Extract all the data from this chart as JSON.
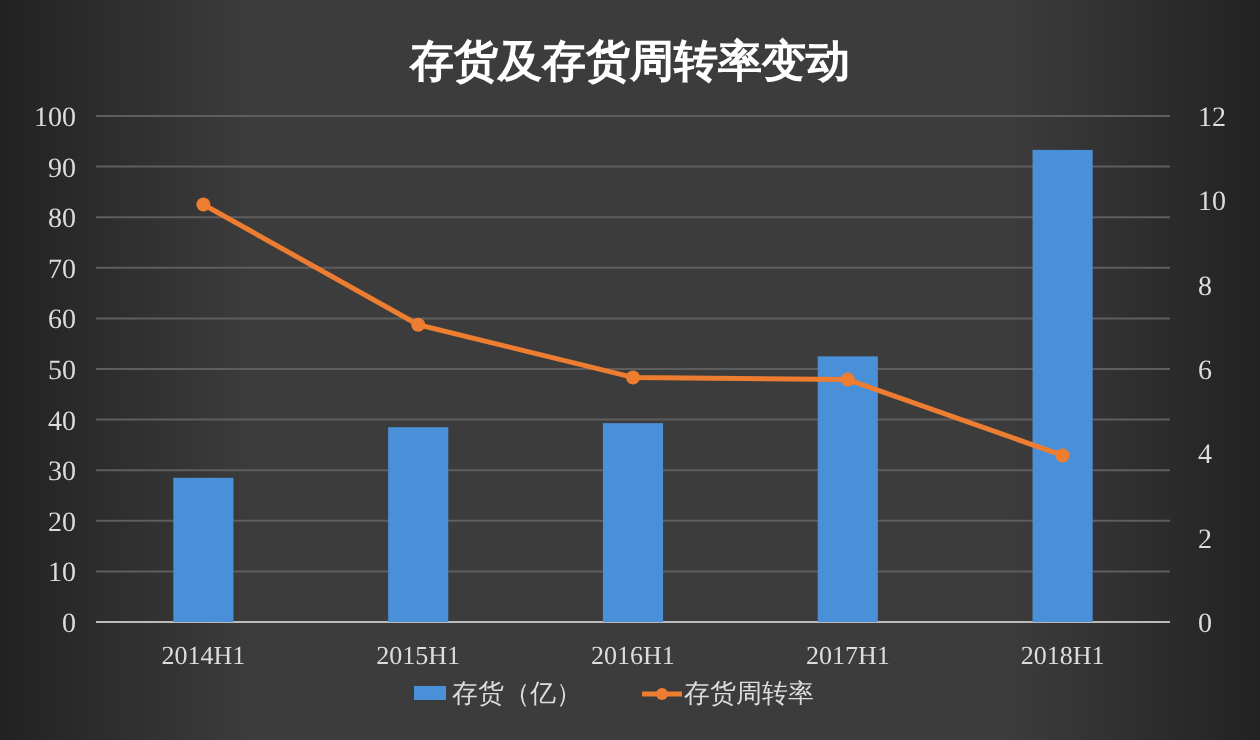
{
  "chart_data": {
    "type": "bar",
    "title": "存货及存货周转率变动",
    "categories": [
      "2014H1",
      "2015H1",
      "2016H1",
      "2017H1",
      "2018H1"
    ],
    "series": [
      {
        "name": "存货（亿）",
        "color": "#4a90d9",
        "values": [
          28.5,
          38.5,
          39.3,
          52.5,
          93.3
        ]
      },
      {
        "name": "存货周转率",
        "type": "line",
        "axis": "y2",
        "color": "#ed7d31",
        "marker": "circle",
        "values": [
          9.9,
          7.05,
          5.8,
          5.75,
          3.95
        ]
      }
    ],
    "ylim": [
      0,
      100
    ],
    "yticks": [
      0,
      10,
      20,
      30,
      40,
      50,
      60,
      70,
      80,
      90,
      100
    ],
    "y2lim": [
      0,
      12
    ],
    "y2ticks": [
      0,
      2,
      4,
      6,
      8,
      10,
      12
    ],
    "grid": "y",
    "legend": "bottom"
  }
}
